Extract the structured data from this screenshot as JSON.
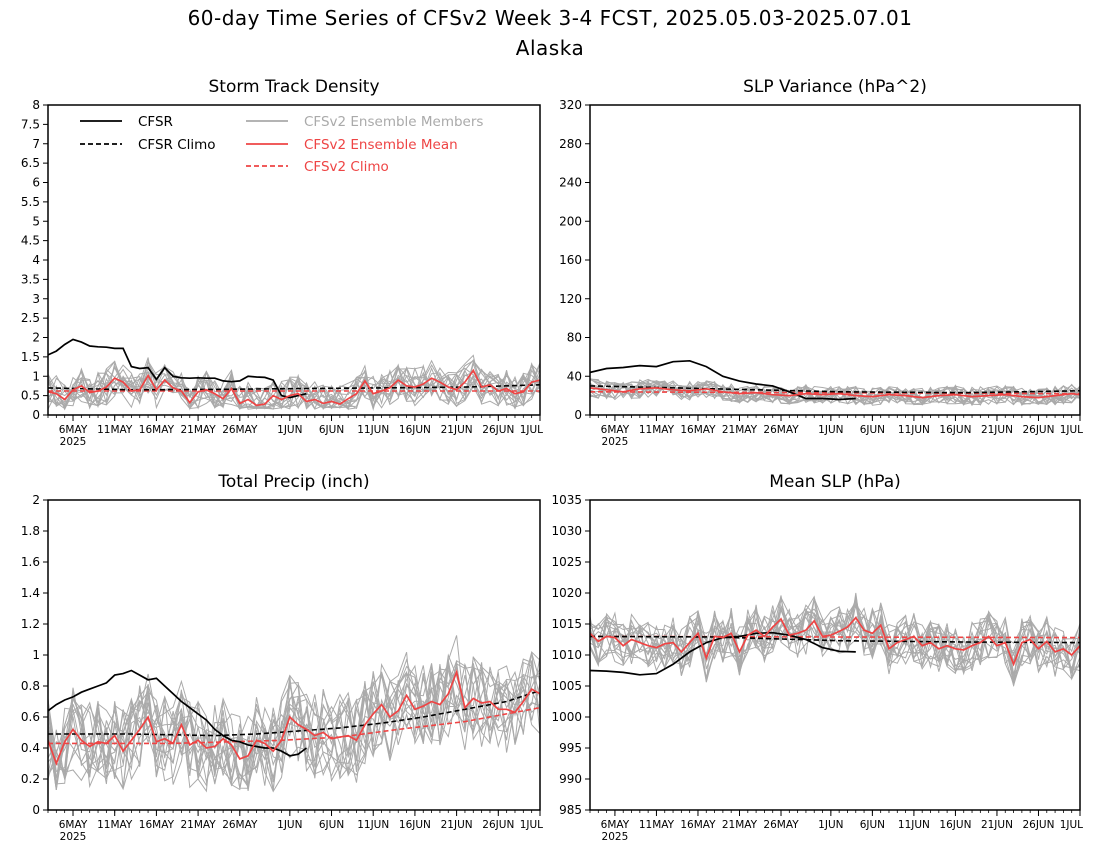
{
  "figure": {
    "title": "60-day Time Series of CFSv2 Week 3-4 FCST, 2025.05.03-2025.07.01",
    "subtitle": "Alaska"
  },
  "legend": {
    "location": "top-left panel",
    "entries": [
      {
        "label": "CFSR",
        "color": "#000000",
        "style": "solid"
      },
      {
        "label": "CFSR Climo",
        "color": "#000000",
        "style": "dashed"
      },
      {
        "label": "CFSv2 Ensemble Members",
        "color": "#aaaaaa",
        "style": "solid"
      },
      {
        "label": "CFSv2 Ensemble Mean",
        "color": "#ee4444",
        "style": "solid"
      },
      {
        "label": "CFSv2 Climo",
        "color": "#ee4444",
        "style": "dashed"
      }
    ]
  },
  "chart_data": [
    {
      "type": "line",
      "title": "Storm Track Density",
      "xlim": [
        0,
        59
      ],
      "ylim": [
        0,
        8
      ],
      "yticks": [
        0,
        0.5,
        1,
        1.5,
        2,
        2.5,
        3,
        3.5,
        4,
        4.5,
        5,
        5.5,
        6,
        6.5,
        7,
        7.5,
        8
      ],
      "ytick_labels": [
        "0",
        "0.5",
        "1",
        "1.5",
        "2",
        "2.5",
        "3",
        "3.5",
        "4",
        "4.5",
        "5",
        "5.5",
        "6",
        "6.5",
        "7",
        "7.5",
        "8"
      ],
      "xticks": [
        3,
        8,
        13,
        18,
        23,
        29,
        34,
        39,
        44,
        49,
        54,
        59
      ],
      "xtick_labels": [
        "6MAY",
        "11MAY",
        "16MAY",
        "21MAY",
        "26MAY",
        "1JUN",
        "6JUN",
        "11JUN",
        "16JUN",
        "21JUN",
        "26JUN",
        "1JUL"
      ],
      "xtick_year": "2025",
      "grid": false,
      "series": [
        {
          "name": "CFSR",
          "color": "#000000",
          "style": "solid",
          "x": [
            0,
            1,
            2,
            3,
            4,
            5,
            6,
            7,
            8,
            9,
            10,
            11,
            12,
            13,
            14,
            15,
            16,
            17,
            18,
            19,
            20,
            21,
            22,
            23,
            24,
            25,
            26,
            27,
            28,
            29,
            30,
            31
          ],
          "values": [
            1.55,
            1.65,
            1.82,
            1.95,
            1.88,
            1.78,
            1.76,
            1.75,
            1.72,
            1.72,
            1.25,
            1.2,
            1.22,
            0.92,
            1.22,
            1.0,
            0.96,
            0.95,
            0.96,
            0.95,
            0.95,
            0.88,
            0.86,
            0.88,
            1.0,
            0.98,
            0.97,
            0.9,
            0.5,
            0.45,
            0.5,
            0.55
          ]
        },
        {
          "name": "CFSR Climo",
          "color": "#000000",
          "style": "dashed",
          "x": [
            0,
            10,
            20,
            30,
            40,
            50,
            59
          ],
          "values": [
            0.7,
            0.65,
            0.66,
            0.68,
            0.7,
            0.72,
            0.78
          ]
        },
        {
          "name": "CFSv2 Ensemble Mean",
          "color": "#ee4444",
          "style": "solid",
          "x": [
            0,
            1,
            2,
            3,
            4,
            5,
            6,
            7,
            8,
            9,
            10,
            11,
            12,
            13,
            14,
            15,
            16,
            17,
            18,
            19,
            20,
            21,
            22,
            23,
            24,
            25,
            26,
            27,
            28,
            29,
            30,
            31,
            32,
            33,
            34,
            35,
            36,
            37,
            38,
            39,
            40,
            41,
            42,
            43,
            44,
            45,
            46,
            47,
            48,
            49,
            50,
            51,
            52,
            53,
            54,
            55,
            56,
            57,
            58,
            59
          ],
          "values": [
            0.6,
            0.55,
            0.4,
            0.65,
            0.75,
            0.58,
            0.62,
            0.72,
            0.95,
            0.85,
            0.62,
            0.65,
            1.02,
            0.65,
            0.9,
            0.7,
            0.62,
            0.32,
            0.6,
            0.65,
            0.55,
            0.42,
            0.68,
            0.3,
            0.4,
            0.25,
            0.28,
            0.5,
            0.4,
            0.5,
            0.55,
            0.35,
            0.4,
            0.3,
            0.35,
            0.28,
            0.42,
            0.55,
            0.88,
            0.55,
            0.62,
            0.7,
            0.9,
            0.75,
            0.72,
            0.8,
            0.95,
            0.85,
            0.72,
            0.65,
            0.85,
            1.15,
            0.72,
            0.78,
            0.62,
            0.68,
            0.55,
            0.6,
            0.85,
            0.9
          ]
        },
        {
          "name": "CFSv2 Climo",
          "color": "#ee4444",
          "style": "dashed",
          "x": [
            0,
            59
          ],
          "values": [
            0.62,
            0.62
          ]
        }
      ],
      "members_band": {
        "lo": 0.15,
        "hi": 1.9,
        "count": 16,
        "seed": 11
      }
    },
    {
      "type": "line",
      "title": "SLP Variance (hPa^2)",
      "xlim": [
        0,
        59
      ],
      "ylim": [
        0,
        320
      ],
      "yticks": [
        0,
        40,
        80,
        120,
        160,
        200,
        240,
        280,
        320
      ],
      "ytick_labels": [
        "0",
        "40",
        "80",
        "120",
        "160",
        "200",
        "240",
        "280",
        "320"
      ],
      "xticks": [
        3,
        8,
        13,
        18,
        23,
        29,
        34,
        39,
        44,
        49,
        54,
        59
      ],
      "xtick_labels": [
        "6MAY",
        "11MAY",
        "16MAY",
        "21MAY",
        "26MAY",
        "1JUN",
        "6JUN",
        "11JUN",
        "16JUN",
        "21JUN",
        "26JUN",
        "1JUL"
      ],
      "xtick_year": "2025",
      "grid": false,
      "series": [
        {
          "name": "CFSR",
          "color": "#000000",
          "style": "solid",
          "x": [
            0,
            2,
            4,
            6,
            8,
            10,
            12,
            14,
            16,
            18,
            20,
            22,
            24,
            26,
            28,
            30,
            32
          ],
          "values": [
            44,
            48,
            49,
            51,
            50,
            55,
            56,
            50,
            40,
            35,
            32,
            30,
            24,
            17,
            17,
            16,
            17
          ]
        },
        {
          "name": "CFSR Climo",
          "color": "#000000",
          "style": "dashed",
          "x": [
            0,
            15,
            30,
            45,
            59
          ],
          "values": [
            30,
            27,
            24,
            23,
            25
          ]
        },
        {
          "name": "CFSv2 Ensemble Mean",
          "color": "#ee4444",
          "style": "solid",
          "x": [
            0,
            2,
            4,
            6,
            8,
            10,
            12,
            14,
            16,
            18,
            20,
            22,
            24,
            26,
            28,
            30,
            32,
            34,
            36,
            38,
            40,
            42,
            44,
            46,
            48,
            50,
            52,
            54,
            56,
            58,
            59
          ],
          "values": [
            28,
            26,
            24,
            27,
            28,
            26,
            25,
            27,
            24,
            22,
            23,
            21,
            20,
            22,
            21,
            22,
            20,
            19,
            21,
            20,
            18,
            20,
            21,
            19,
            20,
            21,
            19,
            18,
            20,
            22,
            21
          ]
        },
        {
          "name": "CFSv2 Climo",
          "color": "#ee4444",
          "style": "dashed",
          "x": [
            0,
            59
          ],
          "values": [
            24,
            22
          ]
        }
      ],
      "members_band": {
        "lo": 10,
        "hi": 45,
        "count": 16,
        "seed": 23
      }
    },
    {
      "type": "line",
      "title": "Total Precip (inch)",
      "xlim": [
        0,
        59
      ],
      "ylim": [
        0,
        2
      ],
      "yticks": [
        0,
        0.2,
        0.4,
        0.6,
        0.8,
        1,
        1.2,
        1.4,
        1.6,
        1.8,
        2
      ],
      "ytick_labels": [
        "0",
        "0.2",
        "0.4",
        "0.6",
        "0.8",
        "1",
        "1.2",
        "1.4",
        "1.6",
        "1.8",
        "2"
      ],
      "xticks": [
        3,
        8,
        13,
        18,
        23,
        29,
        34,
        39,
        44,
        49,
        54,
        59
      ],
      "xtick_labels": [
        "6MAY",
        "11MAY",
        "16MAY",
        "21MAY",
        "26MAY",
        "1JUN",
        "6JUN",
        "11JUN",
        "16JUN",
        "21JUN",
        "26JUN",
        "1JUL"
      ],
      "xtick_year": "2025",
      "grid": false,
      "series": [
        {
          "name": "CFSR",
          "color": "#000000",
          "style": "solid",
          "x": [
            0,
            1,
            2,
            3,
            4,
            5,
            6,
            7,
            8,
            9,
            10,
            11,
            12,
            13,
            14,
            15,
            16,
            17,
            18,
            19,
            20,
            21,
            22,
            23,
            24,
            25,
            26,
            27,
            28,
            29,
            30,
            31
          ],
          "values": [
            0.64,
            0.68,
            0.71,
            0.73,
            0.76,
            0.78,
            0.8,
            0.82,
            0.87,
            0.88,
            0.9,
            0.87,
            0.84,
            0.85,
            0.8,
            0.75,
            0.7,
            0.66,
            0.62,
            0.58,
            0.52,
            0.48,
            0.45,
            0.44,
            0.42,
            0.41,
            0.4,
            0.4,
            0.38,
            0.35,
            0.36,
            0.4
          ]
        },
        {
          "name": "CFSR Climo",
          "color": "#000000",
          "style": "dashed",
          "x": [
            0,
            10,
            20,
            25,
            30,
            35,
            40,
            45,
            50,
            55,
            59
          ],
          "values": [
            0.49,
            0.49,
            0.48,
            0.49,
            0.51,
            0.53,
            0.56,
            0.6,
            0.65,
            0.7,
            0.77
          ]
        },
        {
          "name": "CFSv2 Ensemble Mean",
          "color": "#ee4444",
          "style": "solid",
          "x": [
            0,
            1,
            2,
            3,
            4,
            5,
            6,
            7,
            8,
            9,
            10,
            11,
            12,
            13,
            14,
            15,
            16,
            17,
            18,
            19,
            20,
            21,
            22,
            23,
            24,
            25,
            26,
            27,
            28,
            29,
            30,
            31,
            32,
            33,
            34,
            35,
            36,
            37,
            38,
            39,
            40,
            41,
            42,
            43,
            44,
            45,
            46,
            47,
            48,
            49,
            50,
            51,
            52,
            53,
            54,
            55,
            56,
            57,
            58,
            59
          ],
          "values": [
            0.45,
            0.3,
            0.44,
            0.52,
            0.45,
            0.41,
            0.44,
            0.43,
            0.48,
            0.38,
            0.45,
            0.52,
            0.6,
            0.44,
            0.46,
            0.43,
            0.55,
            0.42,
            0.45,
            0.4,
            0.41,
            0.46,
            0.42,
            0.33,
            0.35,
            0.45,
            0.43,
            0.38,
            0.45,
            0.6,
            0.55,
            0.52,
            0.48,
            0.5,
            0.46,
            0.47,
            0.48,
            0.45,
            0.55,
            0.62,
            0.68,
            0.6,
            0.64,
            0.74,
            0.65,
            0.67,
            0.7,
            0.68,
            0.75,
            0.89,
            0.66,
            0.72,
            0.69,
            0.7,
            0.65,
            0.65,
            0.63,
            0.7,
            0.78,
            0.75
          ]
        },
        {
          "name": "CFSv2 Climo",
          "color": "#ee4444",
          "style": "dashed",
          "x": [
            0,
            15,
            28,
            35,
            42,
            50,
            59
          ],
          "values": [
            0.43,
            0.43,
            0.45,
            0.47,
            0.52,
            0.57,
            0.66
          ]
        }
      ],
      "members_band": {
        "lo": 0.12,
        "hi": 1.15,
        "count": 16,
        "seed": 37,
        "trend": true
      }
    },
    {
      "type": "line",
      "title": "Mean SLP (hPa)",
      "xlim": [
        0,
        59
      ],
      "ylim": [
        985,
        1035
      ],
      "yticks": [
        985,
        990,
        995,
        1000,
        1005,
        1010,
        1015,
        1020,
        1025,
        1030,
        1035
      ],
      "ytick_labels": [
        "985",
        "990",
        "995",
        "1000",
        "1005",
        "1010",
        "1015",
        "1020",
        "1025",
        "1030",
        "1035"
      ],
      "xticks": [
        3,
        8,
        13,
        18,
        23,
        29,
        34,
        39,
        44,
        49,
        54,
        59
      ],
      "xtick_labels": [
        "6MAY",
        "11MAY",
        "16MAY",
        "21MAY",
        "26MAY",
        "1JUN",
        "6JUN",
        "11JUN",
        "16JUN",
        "21JUN",
        "26JUN",
        "1JUL"
      ],
      "xtick_year": "2025",
      "grid": false,
      "series": [
        {
          "name": "CFSR",
          "color": "#000000",
          "style": "solid",
          "x": [
            0,
            2,
            4,
            6,
            8,
            10,
            12,
            14,
            16,
            18,
            20,
            22,
            24,
            26,
            28,
            30,
            32
          ],
          "values": [
            1007.5,
            1007.4,
            1007.2,
            1006.8,
            1007.0,
            1008.5,
            1010.5,
            1012.0,
            1012.8,
            1013.0,
            1013.5,
            1013.6,
            1013.2,
            1012.5,
            1011.2,
            1010.6,
            1010.5
          ]
        },
        {
          "name": "CFSR Climo",
          "color": "#000000",
          "style": "dashed",
          "x": [
            0,
            15,
            30,
            45,
            59
          ],
          "values": [
            1013.0,
            1012.9,
            1012.3,
            1012.1,
            1012.0
          ]
        },
        {
          "name": "CFSv2 Ensemble Mean",
          "color": "#ee4444",
          "style": "solid",
          "x": [
            0,
            1,
            2,
            3,
            4,
            5,
            6,
            7,
            8,
            9,
            10,
            11,
            12,
            13,
            14,
            15,
            16,
            17,
            18,
            19,
            20,
            21,
            22,
            23,
            24,
            25,
            26,
            27,
            28,
            29,
            30,
            31,
            32,
            33,
            34,
            35,
            36,
            37,
            38,
            39,
            40,
            41,
            42,
            43,
            44,
            45,
            46,
            47,
            48,
            49,
            50,
            51,
            52,
            53,
            54,
            55,
            56,
            57,
            58,
            59
          ],
          "values": [
            1013.5,
            1012.2,
            1013.0,
            1012.8,
            1011.5,
            1012.5,
            1012.0,
            1011.5,
            1011.2,
            1011.8,
            1012.0,
            1010.5,
            1012.0,
            1013.5,
            1009.5,
            1013.0,
            1012.8,
            1013.5,
            1010.5,
            1013.2,
            1014.0,
            1013.0,
            1014.5,
            1015.8,
            1013.2,
            1013.5,
            1014.0,
            1015.5,
            1013.0,
            1013.2,
            1013.8,
            1014.5,
            1016.0,
            1014.0,
            1013.5,
            1014.8,
            1011.0,
            1012.0,
            1012.5,
            1013.0,
            1011.5,
            1012.0,
            1011.0,
            1011.5,
            1011.0,
            1010.8,
            1011.5,
            1012.0,
            1013.0,
            1011.5,
            1012.0,
            1008.5,
            1012.0,
            1012.5,
            1011.0,
            1012.2,
            1010.5,
            1011.0,
            1010.0,
            1011.5
          ]
        },
        {
          "name": "CFSv2 Climo",
          "color": "#ee4444",
          "style": "dashed",
          "x": [
            0,
            59
          ],
          "values": [
            1013.0,
            1012.8
          ]
        }
      ],
      "members_band": {
        "lo": 1005,
        "hi": 1020,
        "count": 16,
        "seed": 53
      }
    }
  ]
}
